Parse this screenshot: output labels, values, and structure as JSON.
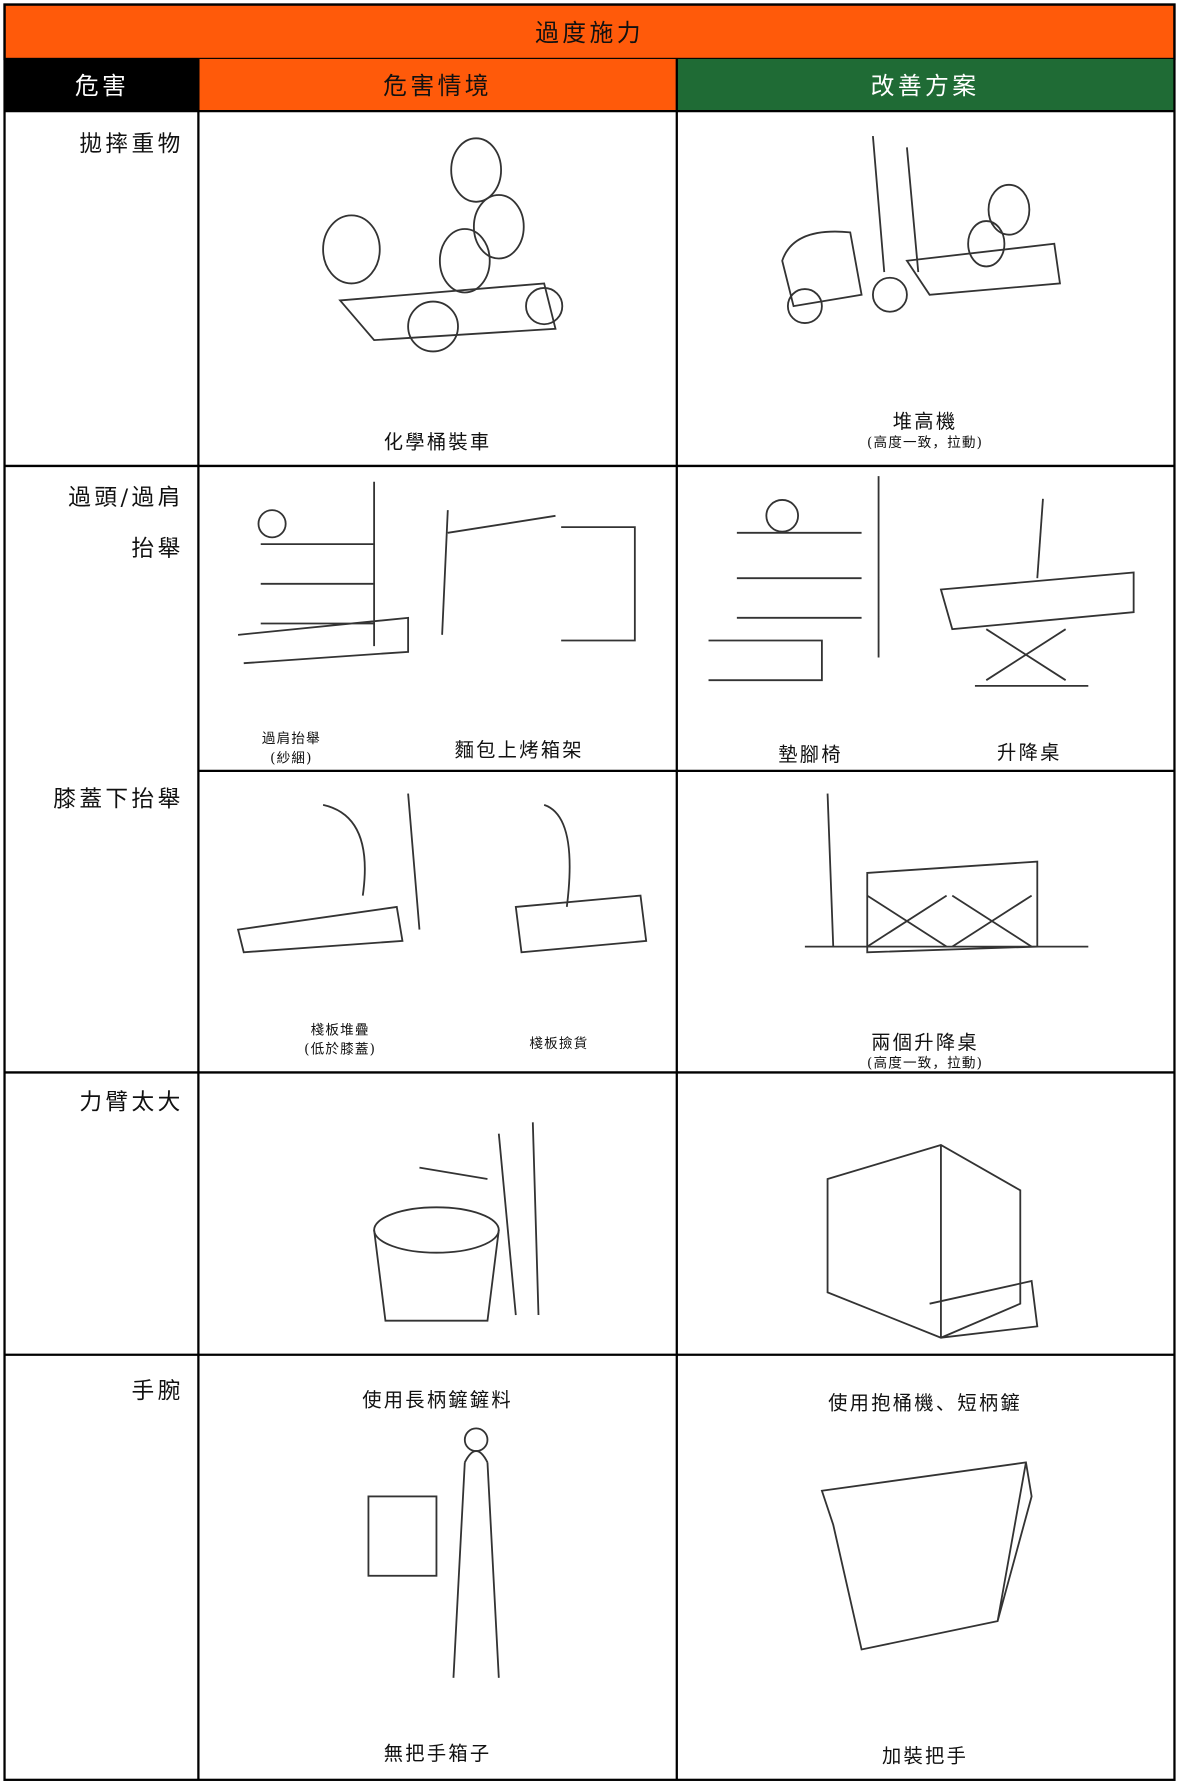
{
  "title": "過度施力",
  "header": {
    "hazard": "危害",
    "situation": "危害情境",
    "improvement": "改善方案"
  },
  "rows": [
    {
      "hazard": [
        "拋摔重物"
      ],
      "situation": [
        "化學桶裝車"
      ],
      "improvement": [
        "堆高機",
        "(高度一致，拉動)"
      ]
    },
    {
      "hazard": [
        "過頭/過肩",
        "抬舉"
      ],
      "situation": [
        "過肩抬舉",
        "(紗綑)",
        "麵包上烤箱架"
      ],
      "improvement": [
        "墊腳椅",
        "升降桌"
      ]
    },
    {
      "hazard": [
        "膝蓋下抬舉"
      ],
      "situation": [
        "棧板堆疊",
        "(低於膝蓋)",
        "棧板撿貨"
      ],
      "improvement": [
        "兩個升降桌",
        "(高度一致，拉動)"
      ]
    },
    {
      "hazard": [
        "力臂太大"
      ],
      "situation": [
        "使用長柄鏟鏟料"
      ],
      "improvement": [
        "使用抱桶機、短柄鏟"
      ]
    },
    {
      "hazard": [
        "手腕"
      ],
      "situation": [
        "無把手箱子"
      ],
      "improvement": [
        "加裝把手"
      ]
    }
  ]
}
